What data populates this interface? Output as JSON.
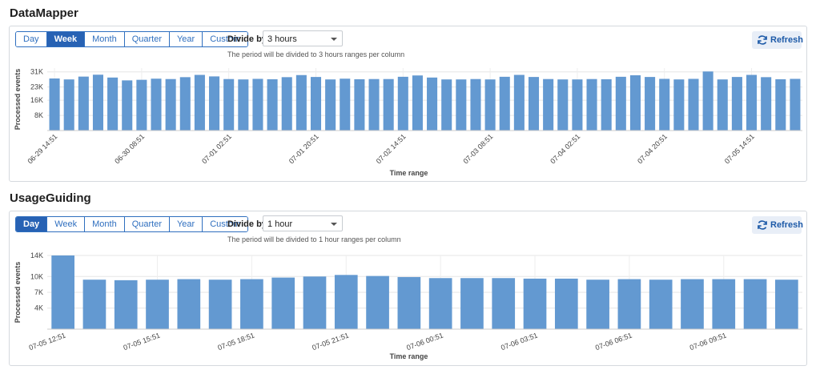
{
  "common": {
    "period_options": [
      "Day",
      "Week",
      "Month",
      "Quarter",
      "Year",
      "Custom"
    ],
    "divide_label": "Divide by",
    "refresh_label": "Refresh",
    "colors": {
      "bar": "#6399d1",
      "accent": "#2762b4"
    }
  },
  "sections": [
    {
      "title": "DataMapper",
      "active_period": "Week",
      "divide_value": "3 hours",
      "hint": "The period will be divided to 3 hours ranges per column",
      "chart_data": {
        "type": "bar",
        "xlabel": "Time range",
        "ylabel": "Processed events",
        "ylim": [
          0,
          33000
        ],
        "yticks": [
          8000,
          16000,
          23000,
          31000
        ],
        "ytick_labels": [
          "8K",
          "16K",
          "23K",
          "31K"
        ],
        "xtick_labels": [
          "06-29 14:51",
          "06-30 08:51",
          "07-01 02:51",
          "07-01 20:51",
          "07-02 14:51",
          "07-03 08:51",
          "07-04 02:51",
          "07-04 20:51",
          "07-05 14:51",
          "07-06 08:51"
        ],
        "xtick_every": 6,
        "values": [
          27500,
          27000,
          28500,
          29500,
          28000,
          26500,
          26800,
          27400,
          27200,
          28200,
          29400,
          28600,
          27200,
          27000,
          27300,
          27100,
          28200,
          29300,
          28300,
          27000,
          27400,
          27100,
          27200,
          27200,
          28400,
          29100,
          28000,
          27000,
          27000,
          27200,
          27000,
          28400,
          29400,
          28300,
          27200,
          27000,
          27000,
          27200,
          27100,
          28400,
          29200,
          28300,
          27300,
          27000,
          27300,
          31200,
          27000,
          28300,
          29400,
          28200,
          27100,
          27300
        ]
      }
    },
    {
      "title": "UsageGuiding",
      "active_period": "Day",
      "divide_value": "1 hour",
      "hint": "The period will be divided to 1 hour ranges per column",
      "chart_data": {
        "type": "bar",
        "xlabel": "Time range",
        "ylabel": "Processed events",
        "ylim": [
          0,
          14000
        ],
        "yticks": [
          4000,
          7000,
          10000,
          14000
        ],
        "ytick_labels": [
          "4K",
          "7K",
          "10K",
          "14K"
        ],
        "xtick_labels": [
          "07-05 12:51",
          "07-05 15:51",
          "07-05 18:51",
          "07-05 21:51",
          "07-06 00:51",
          "07-06 03:51",
          "07-06 06:51",
          "07-06 09:51"
        ],
        "xtick_every": 3,
        "values": [
          14000,
          9400,
          9300,
          9400,
          9500,
          9400,
          9500,
          9800,
          10000,
          10300,
          10100,
          9900,
          9700,
          9700,
          9700,
          9600,
          9600,
          9400,
          9500,
          9400,
          9500,
          9500,
          9500,
          9400
        ]
      }
    }
  ]
}
